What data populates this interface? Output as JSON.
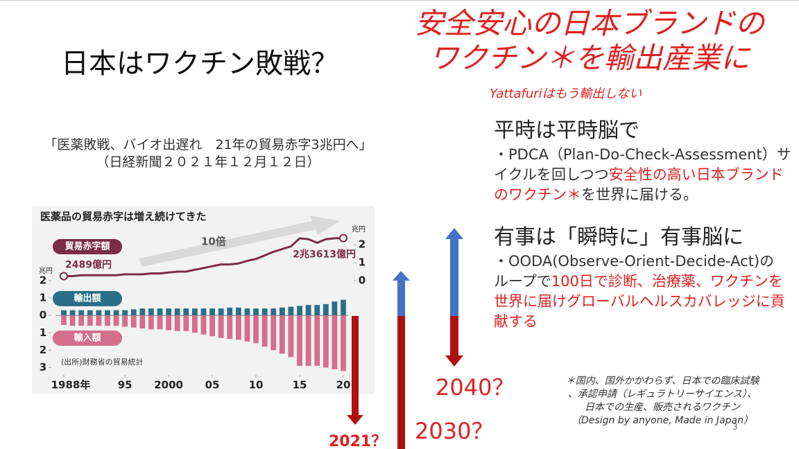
{
  "title": "日本はワクチン敗戦？",
  "headline": [
    "安全安心の日本ブランドの",
    "ワクチン＊を輸出産業に"
  ],
  "headline_note": "Yattafuriはもう輸出しない",
  "quote": [
    "「医薬敗戦、バイオ出遅れ　21年の貿易赤字3兆円へ」",
    "（日経新聞２０２１年１２月１２日）"
  ],
  "highlight_color": "#e02020",
  "peace": {
    "heading": "平時は平時脳で",
    "body": [
      {
        "text": "・PDCA（Plan-Do-Check-Assessment）サイクルを回しつつ",
        "highlight": false
      },
      {
        "text": "安全性の高い日本ブランドのワクチン＊",
        "highlight": true
      },
      {
        "text": "を世界に届ける。",
        "highlight": false
      }
    ]
  },
  "emergency": {
    "heading": "有事は「瞬時に」有事脳に",
    "body": [
      {
        "text": "・OODA(Observe-Orient-Decide-Act)のループで",
        "highlight": false
      },
      {
        "text": "100日で診断、治療薬、ワクチンを世界に届けグローバルヘルスカバレッジに貢献する",
        "highlight": true
      }
    ]
  },
  "arrow_labels": [
    "2021？",
    "2030？",
    "2040？"
  ],
  "footnote": [
    "＊国内、国外かかわらず、日本での臨床試験",
    "、承認申請（レギュラトリーサイエンス）、",
    "日本での生産、販売されるワクチン",
    "（Design by anyone, Made in Japan）"
  ],
  "page_number": "3",
  "chart": {
    "type": "bar+line",
    "title": "医薬品の貿易赤字は増え続けてきた",
    "annotation": "10倍",
    "source": "(出所)財務省の貿易統計",
    "y_unit": "兆円",
    "y2_unit": "兆円",
    "x": [
      1988,
      1989,
      1990,
      1991,
      1992,
      1993,
      1994,
      1995,
      1996,
      1997,
      1998,
      1999,
      2000,
      2001,
      2002,
      2003,
      2004,
      2005,
      2006,
      2007,
      2008,
      2009,
      2010,
      2011,
      2012,
      2013,
      2014,
      2015,
      2016,
      2017,
      2018,
      2019,
      2020
    ],
    "xlim": [
      1987.5,
      2020.5
    ],
    "xticks": [
      {
        "value": 1988,
        "label": "1988年"
      },
      {
        "value": 1995,
        "label": "95"
      },
      2000,
      {
        "value": 2005,
        "label": "05"
      },
      {
        "value": 2010,
        "label": "10"
      },
      {
        "value": 2015,
        "label": "15"
      },
      {
        "value": 2020,
        "label": "20"
      }
    ],
    "ylim": [
      -3.3,
      2
    ],
    "yticks": [
      2,
      1,
      0,
      {
        "value": -1,
        "label": "1"
      },
      {
        "value": -2,
        "label": "2"
      },
      {
        "value": -3,
        "label": "3"
      }
    ],
    "y2lim": [
      0,
      2.5
    ],
    "y2ticks": [
      0,
      1,
      2
    ],
    "series": [
      {
        "name": "輸出額",
        "color": "#2a6f8a",
        "kind": "bar",
        "values": [
          0.3,
          0.3,
          0.3,
          0.3,
          0.3,
          0.3,
          0.3,
          0.3,
          0.35,
          0.4,
          0.4,
          0.4,
          0.4,
          0.4,
          0.4,
          0.4,
          0.4,
          0.4,
          0.4,
          0.45,
          0.45,
          0.4,
          0.4,
          0.4,
          0.4,
          0.45,
          0.5,
          0.55,
          0.6,
          0.6,
          0.65,
          0.8,
          0.9
        ]
      },
      {
        "name": "輸入額",
        "color": "#d36f8c",
        "kind": "bar",
        "values": [
          -0.55,
          -0.6,
          -0.6,
          -0.6,
          -0.6,
          -0.6,
          -0.6,
          -0.65,
          -0.7,
          -0.75,
          -0.8,
          -0.8,
          -0.85,
          -0.9,
          -0.9,
          -1.0,
          -1.1,
          -1.2,
          -1.3,
          -1.35,
          -1.4,
          -1.5,
          -1.6,
          -1.8,
          -2.0,
          -2.2,
          -2.4,
          -2.9,
          -2.9,
          -2.9,
          -3.0,
          -3.1,
          -3.2
        ]
      },
      {
        "name": "貿易赤字額",
        "color": "#7b2c46",
        "kind": "line",
        "axis": "y2",
        "values": [
          0.2489,
          0.25,
          0.3,
          0.3,
          0.3,
          0.3,
          0.3,
          0.35,
          0.35,
          0.35,
          0.4,
          0.4,
          0.45,
          0.5,
          0.5,
          0.6,
          0.7,
          0.8,
          0.9,
          0.9,
          0.95,
          1.1,
          1.2,
          1.4,
          1.6,
          1.75,
          1.9,
          2.35,
          2.3,
          2.1,
          2.3,
          2.35,
          2.3613
        ],
        "value_labels": [
          "2489億円",
          null,
          null,
          null,
          null,
          null,
          null,
          null,
          null,
          null,
          null,
          null,
          null,
          null,
          null,
          null,
          null,
          null,
          null,
          null,
          null,
          null,
          null,
          null,
          null,
          null,
          null,
          null,
          null,
          null,
          null,
          null,
          "2兆3613億円"
        ]
      }
    ]
  }
}
